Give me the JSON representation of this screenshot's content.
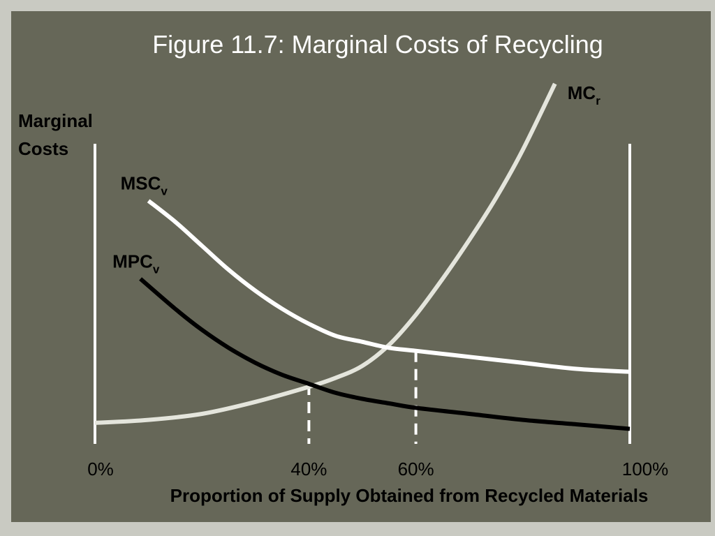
{
  "chart_data": {
    "type": "line",
    "title": "Figure 11.7: Marginal Costs of Recycling",
    "xlabel": "Proportion of Supply Obtained from Recycled Materials",
    "ylabel_line1": "Marginal",
    "ylabel_line2": "Costs",
    "xlim": [
      0,
      100
    ],
    "ylim": [
      0,
      100
    ],
    "x_ticks": [
      {
        "value": 0,
        "label": "0%"
      },
      {
        "value": 40,
        "label": "40%"
      },
      {
        "value": 60,
        "label": "60%"
      },
      {
        "value": 100,
        "label": "100%"
      }
    ],
    "series": [
      {
        "name": "MC",
        "subscript": "r",
        "color": "#e4e5dc",
        "x": [
          0,
          10,
          20,
          30,
          40,
          45,
          50,
          55,
          60,
          65,
          70,
          75,
          80,
          86
        ],
        "y": [
          7,
          8,
          10,
          14,
          19,
          22,
          26,
          33,
          43,
          55,
          68,
          82,
          98,
          120
        ]
      },
      {
        "name": "MSC",
        "subscript": "v",
        "color": "#ffffff",
        "x": [
          10,
          15,
          20,
          25,
          30,
          35,
          40,
          45,
          50,
          55,
          60,
          70,
          80,
          90,
          100
        ],
        "y": [
          81,
          74,
          66,
          58,
          51,
          45,
          40,
          36,
          34,
          32,
          31,
          29,
          27,
          25,
          24
        ]
      },
      {
        "name": "MPC",
        "subscript": "v",
        "color": "#000000",
        "x": [
          8.5,
          15,
          20,
          25,
          30,
          35,
          40,
          45,
          50,
          55,
          60,
          70,
          80,
          90,
          100
        ],
        "y": [
          55,
          45,
          38,
          32,
          27,
          23,
          20,
          17,
          15,
          13.5,
          12,
          10,
          8,
          6.5,
          5
        ]
      }
    ],
    "reference_lines": [
      {
        "x": 40,
        "y": 20
      },
      {
        "x": 60,
        "y": 31
      }
    ],
    "grid": false,
    "legend": "inline labels"
  }
}
